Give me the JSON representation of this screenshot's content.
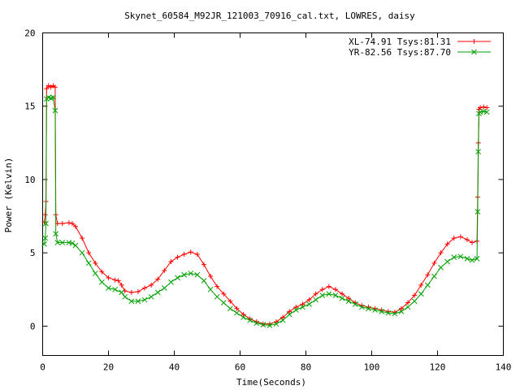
{
  "chart_data": {
    "type": "line",
    "title": "Skynet_60584_M92JR_121003_70916_cal.txt, LOWRES, daisy",
    "xlabel": "Time(Seconds)",
    "ylabel": "Power (Kelvin)",
    "xlim": [
      0,
      140
    ],
    "ylim": [
      -2,
      20
    ],
    "xticks": [
      0,
      20,
      40,
      60,
      80,
      100,
      120,
      140
    ],
    "yticks": [
      0,
      5,
      10,
      15,
      20
    ],
    "grid": false,
    "legend_position": "top-right",
    "series": [
      {
        "name": "XL-74.91 Tsys:81.31",
        "color": "#ff0000",
        "marker": "+",
        "points": [
          [
            0.5,
            7.1
          ],
          [
            0.8,
            7.6
          ],
          [
            1.0,
            8.5
          ],
          [
            1.2,
            16.2
          ],
          [
            1.8,
            16.4
          ],
          [
            2.5,
            16.3
          ],
          [
            3.2,
            16.4
          ],
          [
            3.8,
            16.3
          ],
          [
            4.0,
            7.6
          ],
          [
            4.5,
            7.0
          ],
          [
            6,
            7.0
          ],
          [
            8,
            7.05
          ],
          [
            9,
            7.0
          ],
          [
            10,
            6.8
          ],
          [
            12,
            6.0
          ],
          [
            14,
            5.0
          ],
          [
            16,
            4.3
          ],
          [
            18,
            3.7
          ],
          [
            20,
            3.3
          ],
          [
            22,
            3.15
          ],
          [
            23,
            3.1
          ],
          [
            24,
            2.8
          ],
          [
            25,
            2.4
          ],
          [
            27,
            2.3
          ],
          [
            29,
            2.35
          ],
          [
            31,
            2.6
          ],
          [
            33,
            2.8
          ],
          [
            35,
            3.2
          ],
          [
            37,
            3.8
          ],
          [
            39,
            4.4
          ],
          [
            41,
            4.7
          ],
          [
            43,
            4.9
          ],
          [
            45,
            5.05
          ],
          [
            47,
            4.9
          ],
          [
            49,
            4.2
          ],
          [
            51,
            3.4
          ],
          [
            53,
            2.7
          ],
          [
            55,
            2.2
          ],
          [
            57,
            1.7
          ],
          [
            59,
            1.2
          ],
          [
            61,
            0.8
          ],
          [
            63,
            0.5
          ],
          [
            65,
            0.3
          ],
          [
            67,
            0.15
          ],
          [
            69,
            0.15
          ],
          [
            71,
            0.3
          ],
          [
            73,
            0.6
          ],
          [
            75,
            1.0
          ],
          [
            77,
            1.3
          ],
          [
            79,
            1.5
          ],
          [
            81,
            1.8
          ],
          [
            83,
            2.2
          ],
          [
            85,
            2.5
          ],
          [
            87,
            2.7
          ],
          [
            89,
            2.5
          ],
          [
            91,
            2.2
          ],
          [
            93,
            1.9
          ],
          [
            95,
            1.6
          ],
          [
            97,
            1.4
          ],
          [
            99,
            1.3
          ],
          [
            101,
            1.2
          ],
          [
            103,
            1.1
          ],
          [
            105,
            1.0
          ],
          [
            107,
            0.95
          ],
          [
            109,
            1.2
          ],
          [
            111,
            1.6
          ],
          [
            113,
            2.1
          ],
          [
            115,
            2.8
          ],
          [
            117,
            3.5
          ],
          [
            119,
            4.3
          ],
          [
            121,
            5.0
          ],
          [
            123,
            5.6
          ],
          [
            125,
            6.0
          ],
          [
            127,
            6.1
          ],
          [
            129,
            5.9
          ],
          [
            130.5,
            5.7
          ],
          [
            132,
            5.8
          ],
          [
            132.2,
            8.8
          ],
          [
            132.4,
            12.5
          ],
          [
            132.6,
            14.8
          ],
          [
            133,
            14.9
          ],
          [
            134,
            14.95
          ],
          [
            135,
            14.9
          ]
        ]
      },
      {
        "name": "YR-82.56 Tsys:87.70",
        "color": "#00a000",
        "marker": "x",
        "points": [
          [
            0.5,
            5.6
          ],
          [
            0.8,
            6.0
          ],
          [
            1.0,
            7.0
          ],
          [
            1.2,
            15.5
          ],
          [
            1.8,
            15.6
          ],
          [
            2.5,
            15.55
          ],
          [
            3.2,
            15.6
          ],
          [
            3.8,
            14.7
          ],
          [
            4.0,
            6.3
          ],
          [
            4.5,
            5.7
          ],
          [
            6,
            5.7
          ],
          [
            8,
            5.7
          ],
          [
            9,
            5.65
          ],
          [
            10,
            5.5
          ],
          [
            12,
            5.0
          ],
          [
            14,
            4.3
          ],
          [
            16,
            3.6
          ],
          [
            18,
            3.0
          ],
          [
            20,
            2.6
          ],
          [
            22,
            2.5
          ],
          [
            24,
            2.3
          ],
          [
            25,
            2.0
          ],
          [
            27,
            1.7
          ],
          [
            29,
            1.7
          ],
          [
            31,
            1.8
          ],
          [
            33,
            2.0
          ],
          [
            35,
            2.3
          ],
          [
            37,
            2.6
          ],
          [
            39,
            3.0
          ],
          [
            41,
            3.3
          ],
          [
            43,
            3.5
          ],
          [
            45,
            3.6
          ],
          [
            47,
            3.5
          ],
          [
            49,
            3.1
          ],
          [
            51,
            2.5
          ],
          [
            53,
            2.0
          ],
          [
            55,
            1.6
          ],
          [
            57,
            1.2
          ],
          [
            59,
            0.9
          ],
          [
            61,
            0.6
          ],
          [
            63,
            0.4
          ],
          [
            65,
            0.2
          ],
          [
            67,
            0.1
          ],
          [
            69,
            0.05
          ],
          [
            71,
            0.15
          ],
          [
            73,
            0.4
          ],
          [
            75,
            0.8
          ],
          [
            77,
            1.1
          ],
          [
            79,
            1.3
          ],
          [
            81,
            1.5
          ],
          [
            83,
            1.8
          ],
          [
            85,
            2.1
          ],
          [
            87,
            2.2
          ],
          [
            89,
            2.1
          ],
          [
            91,
            1.9
          ],
          [
            93,
            1.7
          ],
          [
            95,
            1.5
          ],
          [
            97,
            1.3
          ],
          [
            99,
            1.2
          ],
          [
            101,
            1.1
          ],
          [
            103,
            1.0
          ],
          [
            105,
            0.9
          ],
          [
            107,
            0.85
          ],
          [
            109,
            1.0
          ],
          [
            111,
            1.3
          ],
          [
            113,
            1.7
          ],
          [
            115,
            2.2
          ],
          [
            117,
            2.8
          ],
          [
            119,
            3.4
          ],
          [
            121,
            4.0
          ],
          [
            123,
            4.4
          ],
          [
            125,
            4.7
          ],
          [
            127,
            4.75
          ],
          [
            129,
            4.6
          ],
          [
            130.5,
            4.5
          ],
          [
            132,
            4.6
          ],
          [
            132.2,
            7.8
          ],
          [
            132.4,
            11.9
          ],
          [
            132.6,
            14.5
          ],
          [
            133,
            14.6
          ],
          [
            134,
            14.65
          ],
          [
            135,
            14.6
          ]
        ]
      }
    ]
  }
}
